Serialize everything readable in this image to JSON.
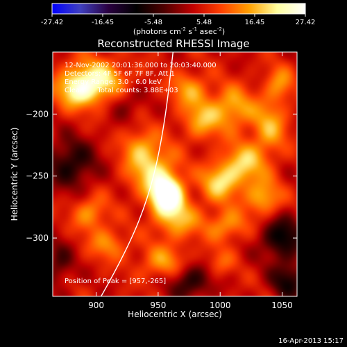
{
  "chart_data": {
    "type": "heatmap",
    "title": "Reconstructed RHESSI Image",
    "colorbar": {
      "ticks": [
        "-27.42",
        "-16.45",
        "-5.48",
        "5.48",
        "16.45",
        "27.42"
      ],
      "range": [
        -27.42,
        27.42
      ],
      "unit_prefix": "(photons cm",
      "unit_sup1": "-2",
      "unit_mid": " s",
      "unit_sup2": "-1",
      "unit_mid2": " asec",
      "unit_sup3": "-2",
      "unit_suffix": ")",
      "colors": [
        "#0000ff",
        "#4040c0",
        "#2a0040",
        "#000000",
        "#500000",
        "#c00000",
        "#ff4000",
        "#ffa000",
        "#ffffa0",
        "#ffffff"
      ]
    },
    "xlabel": "Heliocentric X (arcsec)",
    "ylabel": "Heliocentric Y (arcsec)",
    "xlim": [
      865,
      1062
    ],
    "ylim": [
      -347,
      -150
    ],
    "xticks": [
      900,
      950,
      1000,
      1050
    ],
    "yticks": [
      -200,
      -250,
      -300
    ],
    "annotations": {
      "time": "12-Nov-2002 20:01:36.000 to 20:03:40.000",
      "detectors": "Detectors: 4F 5F 6F 7F 8F, Att 1",
      "energy": "Energy Range: 3.0 - 6.0 keV",
      "clean": "Clean      Total counts: 3.88E+03",
      "peak": "Position of Peak = [957,-265]"
    },
    "peak": [
      957,
      -265
    ],
    "limb_curve": [
      [
        904,
        -347
      ],
      [
        925,
        -310
      ],
      [
        944,
        -262
      ],
      [
        955,
        -210
      ],
      [
        962,
        -150
      ]
    ],
    "blobs": [
      {
        "x": 957,
        "y": -265,
        "sx": 9,
        "sy": 10,
        "v": 27
      },
      {
        "x": 945,
        "y": -245,
        "sx": 14,
        "sy": 14,
        "v": 14
      },
      {
        "x": 965,
        "y": -285,
        "sx": 13,
        "sy": 11,
        "v": 12
      },
      {
        "x": 900,
        "y": -173,
        "sx": 18,
        "sy": 12,
        "v": 16
      },
      {
        "x": 885,
        "y": -182,
        "sx": 12,
        "sy": 10,
        "v": 12
      },
      {
        "x": 1000,
        "y": -255,
        "sx": 11,
        "sy": 11,
        "v": 14
      },
      {
        "x": 1020,
        "y": -240,
        "sx": 12,
        "sy": 12,
        "v": 13
      },
      {
        "x": 1040,
        "y": -210,
        "sx": 10,
        "sy": 16,
        "v": 11
      },
      {
        "x": 1010,
        "y": -195,
        "sx": 12,
        "sy": 12,
        "v": 12
      },
      {
        "x": 985,
        "y": -205,
        "sx": 11,
        "sy": 11,
        "v": 11
      },
      {
        "x": 975,
        "y": -180,
        "sx": 11,
        "sy": 10,
        "v": 10
      },
      {
        "x": 1035,
        "y": -268,
        "sx": 10,
        "sy": 10,
        "v": 12
      },
      {
        "x": 1005,
        "y": -290,
        "sx": 12,
        "sy": 9,
        "v": 10
      },
      {
        "x": 895,
        "y": -280,
        "sx": 10,
        "sy": 10,
        "v": 10
      },
      {
        "x": 910,
        "y": -305,
        "sx": 11,
        "sy": 9,
        "v": 9
      },
      {
        "x": 955,
        "y": -320,
        "sx": 14,
        "sy": 10,
        "v": 10
      },
      {
        "x": 935,
        "y": -225,
        "sx": 10,
        "sy": 10,
        "v": 8
      },
      {
        "x": 1048,
        "y": -175,
        "sx": 8,
        "sy": 10,
        "v": 9
      },
      {
        "x": 1000,
        "y": -320,
        "sx": 8,
        "sy": 8,
        "v": 6
      },
      {
        "x": 925,
        "y": -190,
        "sx": 10,
        "sy": 10,
        "v": -6
      },
      {
        "x": 880,
        "y": -240,
        "sx": 14,
        "sy": 14,
        "v": -12
      },
      {
        "x": 1050,
        "y": -300,
        "sx": 12,
        "sy": 12,
        "v": -14
      },
      {
        "x": 975,
        "y": -335,
        "sx": 12,
        "sy": 10,
        "v": -12
      },
      {
        "x": 1055,
        "y": -335,
        "sx": 10,
        "sy": 10,
        "v": -12
      },
      {
        "x": 870,
        "y": -320,
        "sx": 8,
        "sy": 12,
        "v": -8
      }
    ]
  },
  "footer": {
    "date": "16-Apr-2013 15:17"
  }
}
